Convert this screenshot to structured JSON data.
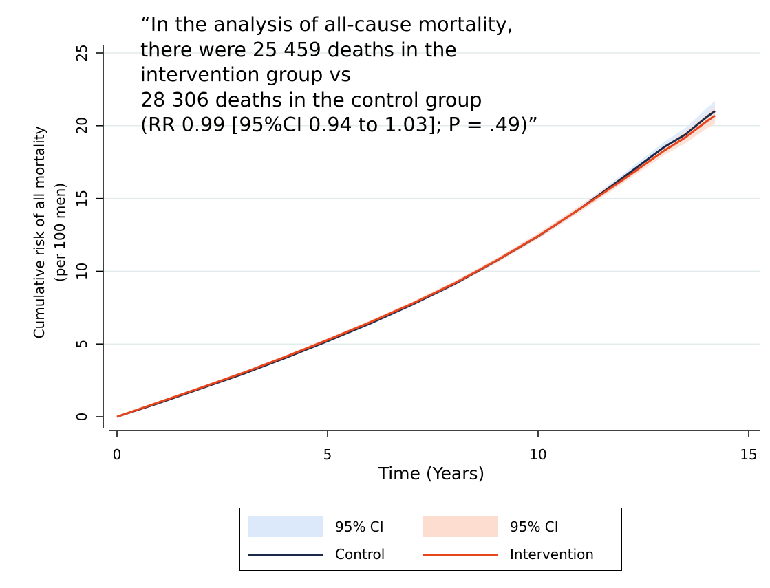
{
  "annotation": {
    "lines": [
      "“In the analysis of all-cause mortality,",
      "there were 25 459 deaths in the",
      "intervention group vs",
      "28 306 deaths in the control group",
      "(RR 0.99 [95%CI 0.94 to 1.03]; P = .49)”"
    ]
  },
  "chart_data": {
    "type": "line",
    "title": "",
    "xlabel": "Time (Years)",
    "ylabel_lines": [
      "Cumulative risk of all mortality",
      "(per 100 men)"
    ],
    "xlim": [
      0,
      15
    ],
    "ylim": [
      0,
      25
    ],
    "xticks": [
      0,
      5,
      10,
      15
    ],
    "yticks": [
      0,
      5,
      10,
      15,
      20,
      25
    ],
    "grid": "horizontal",
    "legend_position": "bottom",
    "series": [
      {
        "name": "Control",
        "color": "#1b2a4a",
        "ci_label": "95% CI",
        "ci_color": "#dbe9fb",
        "x": [
          0,
          1,
          2,
          3,
          4,
          5,
          6,
          7,
          8,
          9,
          10,
          11,
          12,
          13,
          13.5,
          14,
          14.2
        ],
        "y": [
          0,
          0.95,
          1.95,
          2.95,
          4.05,
          5.2,
          6.4,
          7.7,
          9.1,
          10.7,
          12.4,
          14.3,
          16.4,
          18.55,
          19.4,
          20.6,
          21.0
        ],
        "ci_lower": [
          0,
          0.9,
          1.88,
          2.87,
          3.96,
          5.1,
          6.3,
          7.58,
          8.97,
          10.55,
          12.22,
          14.1,
          16.15,
          18.2,
          18.95,
          20.0,
          20.3
        ],
        "ci_upper": [
          0,
          1.0,
          2.02,
          3.03,
          4.14,
          5.3,
          6.5,
          7.82,
          9.23,
          10.85,
          12.58,
          14.5,
          16.65,
          18.9,
          19.85,
          21.2,
          21.7
        ]
      },
      {
        "name": "Intervention",
        "color": "#e8451c",
        "ci_label": "95% CI",
        "ci_color": "#fcddd0",
        "x": [
          0,
          1,
          2,
          3,
          4,
          5,
          6,
          7,
          8,
          9,
          10,
          11,
          12,
          13,
          13.5,
          14,
          14.2
        ],
        "y": [
          0,
          1.0,
          2.0,
          3.02,
          4.12,
          5.28,
          6.48,
          7.76,
          9.15,
          10.72,
          12.42,
          14.3,
          16.25,
          18.3,
          19.2,
          20.3,
          20.7
        ],
        "ci_lower": [
          0,
          0.94,
          1.92,
          2.93,
          4.02,
          5.17,
          6.36,
          7.63,
          9.0,
          10.55,
          12.22,
          14.08,
          16.0,
          18.0,
          18.8,
          19.8,
          20.1
        ],
        "ci_upper": [
          0,
          1.06,
          2.08,
          3.11,
          4.22,
          5.39,
          6.6,
          7.89,
          9.3,
          10.89,
          12.62,
          14.52,
          16.5,
          18.6,
          19.6,
          20.8,
          21.3
        ]
      }
    ]
  }
}
